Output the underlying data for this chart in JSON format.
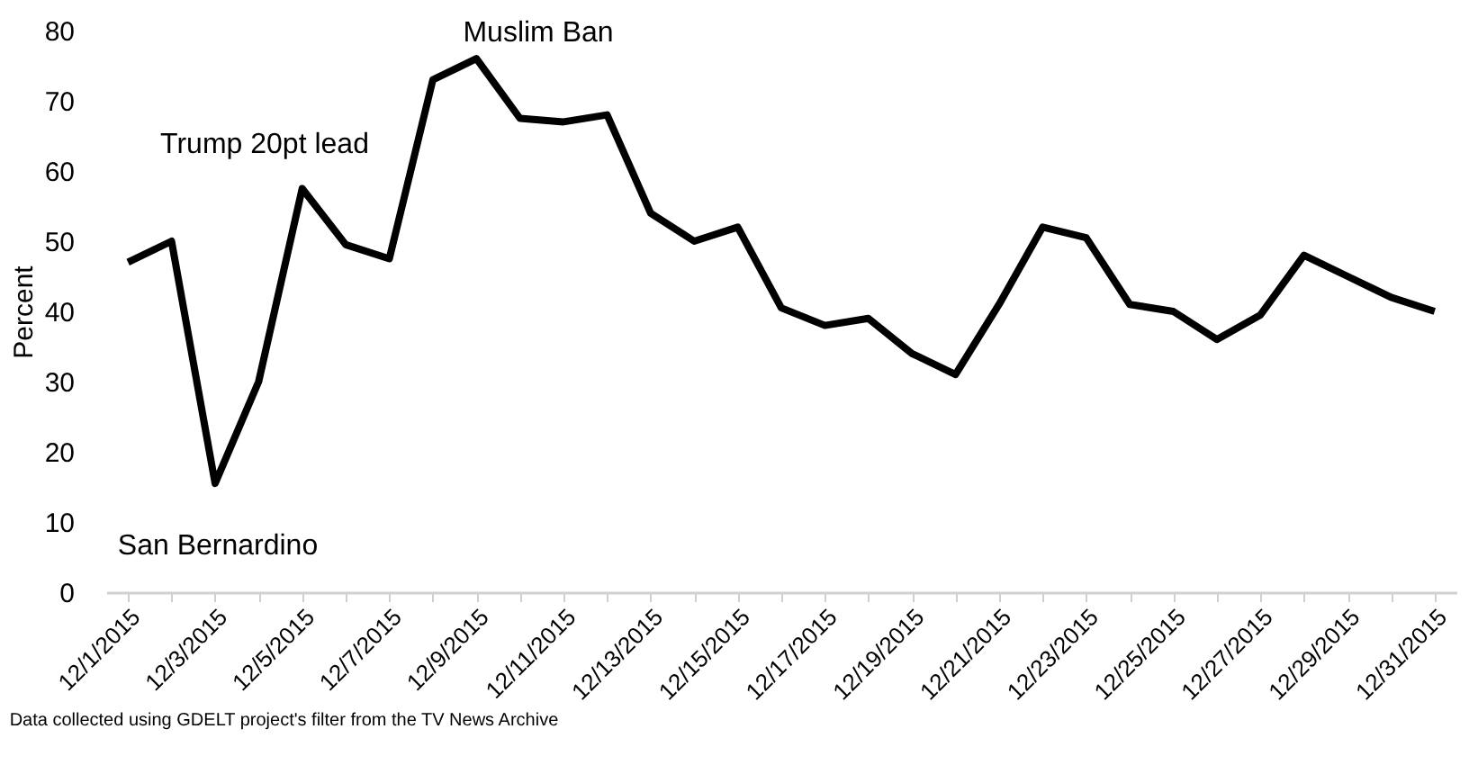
{
  "chart_data": {
    "type": "line",
    "ylabel": "Percent",
    "categories": [
      "12/1/2015",
      null,
      "12/3/2015",
      null,
      "12/5/2015",
      null,
      "12/7/2015",
      null,
      "12/9/2015",
      null,
      "12/11/2015",
      null,
      "12/13/2015",
      null,
      "12/15/2015",
      null,
      "12/17/2015",
      null,
      "12/19/2015",
      null,
      "12/21/2015",
      null,
      "12/23/2015",
      null,
      "12/25/2015",
      null,
      "12/27/2015",
      null,
      "12/29/2015",
      null,
      "12/31/2015"
    ],
    "series": [
      {
        "color": "#000000",
        "values": [
          47,
          50,
          15.5,
          30,
          57.5,
          49.5,
          47.5,
          73,
          76,
          67.5,
          67,
          68,
          54,
          50,
          52,
          40.5,
          38,
          39,
          34,
          31,
          41,
          52,
          50.5,
          41,
          40,
          36,
          39.5,
          48,
          45,
          42,
          40
        ]
      }
    ],
    "ylim": [
      0,
      80
    ],
    "yticks": [
      0,
      10,
      20,
      30,
      40,
      50,
      60,
      70,
      80
    ],
    "grid": false,
    "legend": false,
    "marker": "none",
    "line_style": "solid",
    "annotations": [
      "Trump 20pt lead",
      "Muslim Ban",
      "San Bernardino",
      "Data collected using GDELT project's filter from the TV News Archive"
    ]
  }
}
